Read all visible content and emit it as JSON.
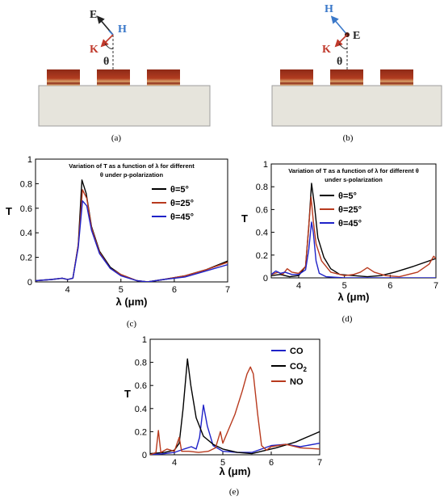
{
  "diagrams": {
    "a": {
      "caption": "(a)",
      "labels": {
        "e": "E",
        "h": "H",
        "k": "K",
        "theta": "θ"
      },
      "colors": {
        "e": "#222222",
        "h": "#3a78c9",
        "k": "#c0392b",
        "theta": "#222222"
      }
    },
    "b": {
      "caption": "(b)",
      "labels": {
        "e": "E",
        "h": "H",
        "k": "K",
        "theta": "θ"
      },
      "colors": {
        "e": "#222222",
        "h": "#3a78c9",
        "k": "#c0392b",
        "theta": "#222222"
      }
    }
  },
  "chart_data": [
    {
      "id": "c",
      "type": "line",
      "title_lines": [
        "Variation of T as a function of λ for different",
        "θ under p-polarization"
      ],
      "xlabel": "λ (μm)",
      "ylabel": "T",
      "caption": "(c)",
      "xlim": [
        3.4,
        7
      ],
      "ylim": [
        0,
        1
      ],
      "xticks": [
        4,
        5,
        6,
        7
      ],
      "yticks": [
        0,
        0.2,
        0.4,
        0.6,
        0.8,
        1
      ],
      "ytick_labels": [
        "0",
        "0.2",
        "0.4",
        "0.6",
        "0.8",
        "1"
      ],
      "legend_position": "right",
      "series": [
        {
          "name": "θ=5°",
          "color": "#000000",
          "points": [
            [
              3.4,
              0.01
            ],
            [
              3.7,
              0.02
            ],
            [
              3.9,
              0.03
            ],
            [
              4.0,
              0.02
            ],
            [
              4.1,
              0.03
            ],
            [
              4.2,
              0.3
            ],
            [
              4.27,
              0.83
            ],
            [
              4.35,
              0.72
            ],
            [
              4.45,
              0.45
            ],
            [
              4.6,
              0.25
            ],
            [
              4.8,
              0.12
            ],
            [
              5.0,
              0.06
            ],
            [
              5.3,
              0.01
            ],
            [
              5.5,
              0.0
            ],
            [
              5.8,
              0.02
            ],
            [
              6.2,
              0.05
            ],
            [
              6.6,
              0.1
            ],
            [
              7.0,
              0.17
            ]
          ]
        },
        {
          "name": "θ=25°",
          "color": "#b83a1e",
          "points": [
            [
              3.4,
              0.01
            ],
            [
              3.7,
              0.02
            ],
            [
              3.9,
              0.03
            ],
            [
              4.0,
              0.02
            ],
            [
              4.1,
              0.03
            ],
            [
              4.2,
              0.3
            ],
            [
              4.28,
              0.75
            ],
            [
              4.36,
              0.68
            ],
            [
              4.45,
              0.44
            ],
            [
              4.6,
              0.24
            ],
            [
              4.8,
              0.11
            ],
            [
              5.0,
              0.06
            ],
            [
              5.3,
              0.01
            ],
            [
              5.5,
              0.0
            ],
            [
              5.8,
              0.02
            ],
            [
              6.2,
              0.05
            ],
            [
              6.6,
              0.1
            ],
            [
              7.0,
              0.16
            ]
          ]
        },
        {
          "name": "θ=45°",
          "color": "#1f22c8",
          "points": [
            [
              3.4,
              0.01
            ],
            [
              3.7,
              0.02
            ],
            [
              3.9,
              0.03
            ],
            [
              4.0,
              0.02
            ],
            [
              4.1,
              0.03
            ],
            [
              4.2,
              0.28
            ],
            [
              4.28,
              0.66
            ],
            [
              4.36,
              0.62
            ],
            [
              4.45,
              0.42
            ],
            [
              4.6,
              0.23
            ],
            [
              4.8,
              0.11
            ],
            [
              5.0,
              0.05
            ],
            [
              5.3,
              0.01
            ],
            [
              5.5,
              0.0
            ],
            [
              5.8,
              0.02
            ],
            [
              6.2,
              0.04
            ],
            [
              6.6,
              0.09
            ],
            [
              7.0,
              0.14
            ]
          ]
        }
      ]
    },
    {
      "id": "d",
      "type": "line",
      "title_lines": [
        "Variation of T as a function of λ for different θ",
        "under s-polarization"
      ],
      "xlabel": "λ (μm)",
      "ylabel": "T",
      "caption": "(d)",
      "xlim": [
        3.4,
        7
      ],
      "ylim": [
        0,
        1
      ],
      "xticks": [
        4,
        5,
        6,
        7
      ],
      "yticks": [
        0,
        0.2,
        0.4,
        0.6,
        0.8,
        1
      ],
      "ytick_labels": [
        "0",
        "0.2",
        "0.4",
        "0.6",
        "0.8",
        "1"
      ],
      "legend_position": "right",
      "series": [
        {
          "name": "θ=5°",
          "color": "#000000",
          "points": [
            [
              3.4,
              0.02
            ],
            [
              3.6,
              0.03
            ],
            [
              3.8,
              0.01
            ],
            [
              4.0,
              0.02
            ],
            [
              4.15,
              0.1
            ],
            [
              4.22,
              0.45
            ],
            [
              4.28,
              0.83
            ],
            [
              4.34,
              0.65
            ],
            [
              4.42,
              0.35
            ],
            [
              4.55,
              0.18
            ],
            [
              4.7,
              0.08
            ],
            [
              4.9,
              0.03
            ],
            [
              5.2,
              0.02
            ],
            [
              5.5,
              0.01
            ],
            [
              5.8,
              0.02
            ],
            [
              6.1,
              0.05
            ],
            [
              6.5,
              0.1
            ],
            [
              7.0,
              0.17
            ]
          ]
        },
        {
          "name": "θ=25°",
          "color": "#b83a1e",
          "points": [
            [
              3.4,
              0.03
            ],
            [
              3.55,
              0.05
            ],
            [
              3.65,
              0.03
            ],
            [
              3.75,
              0.08
            ],
            [
              3.85,
              0.05
            ],
            [
              4.0,
              0.04
            ],
            [
              4.15,
              0.1
            ],
            [
              4.2,
              0.35
            ],
            [
              4.27,
              0.71
            ],
            [
              4.32,
              0.5
            ],
            [
              4.38,
              0.3
            ],
            [
              4.5,
              0.15
            ],
            [
              4.7,
              0.05
            ],
            [
              5.0,
              0.02
            ],
            [
              5.2,
              0.03
            ],
            [
              5.35,
              0.05
            ],
            [
              5.5,
              0.09
            ],
            [
              5.65,
              0.05
            ],
            [
              5.9,
              0.02
            ],
            [
              6.2,
              0.01
            ],
            [
              6.6,
              0.05
            ],
            [
              6.85,
              0.12
            ],
            [
              6.95,
              0.19
            ],
            [
              7.0,
              0.17
            ]
          ]
        },
        {
          "name": "θ=45°",
          "color": "#1f22c8",
          "points": [
            [
              3.4,
              0.03
            ],
            [
              3.5,
              0.06
            ],
            [
              3.6,
              0.04
            ],
            [
              3.7,
              0.05
            ],
            [
              3.85,
              0.03
            ],
            [
              4.0,
              0.03
            ],
            [
              4.15,
              0.07
            ],
            [
              4.22,
              0.25
            ],
            [
              4.28,
              0.49
            ],
            [
              4.32,
              0.4
            ],
            [
              4.38,
              0.15
            ],
            [
              4.45,
              0.04
            ],
            [
              4.6,
              0.01
            ],
            [
              5.0,
              0.0
            ],
            [
              7.0,
              0.0
            ]
          ]
        }
      ]
    },
    {
      "id": "e",
      "type": "line",
      "xlabel": "λ (μm)",
      "ylabel": "T",
      "caption": "(e)",
      "xlim": [
        3.5,
        7
      ],
      "ylim": [
        0,
        1
      ],
      "xticks": [
        4,
        5,
        6,
        7
      ],
      "yticks": [
        0,
        0.2,
        0.4,
        0.6,
        0.8,
        1
      ],
      "ytick_labels": [
        "0",
        "0.2",
        "0.4",
        "0.6",
        "0.8",
        "1"
      ],
      "legend_position": "top-right",
      "series": [
        {
          "name": "CO",
          "color": "#1f22c8",
          "points": [
            [
              3.5,
              0.0
            ],
            [
              3.8,
              0.01
            ],
            [
              4.0,
              0.02
            ],
            [
              4.2,
              0.05
            ],
            [
              4.35,
              0.07
            ],
            [
              4.45,
              0.05
            ],
            [
              4.52,
              0.15
            ],
            [
              4.6,
              0.43
            ],
            [
              4.68,
              0.25
            ],
            [
              4.8,
              0.08
            ],
            [
              5.0,
              0.03
            ],
            [
              5.3,
              0.02
            ],
            [
              5.6,
              0.02
            ],
            [
              5.8,
              0.05
            ],
            [
              6.0,
              0.08
            ],
            [
              6.3,
              0.09
            ],
            [
              6.6,
              0.07
            ],
            [
              7.0,
              0.1
            ]
          ]
        },
        {
          "name": "CO2",
          "color": "#000000",
          "points": [
            [
              3.5,
              0.01
            ],
            [
              3.8,
              0.02
            ],
            [
              4.0,
              0.04
            ],
            [
              4.1,
              0.1
            ],
            [
              4.18,
              0.4
            ],
            [
              4.27,
              0.83
            ],
            [
              4.34,
              0.6
            ],
            [
              4.45,
              0.32
            ],
            [
              4.6,
              0.16
            ],
            [
              4.8,
              0.09
            ],
            [
              5.0,
              0.05
            ],
            [
              5.3,
              0.02
            ],
            [
              5.6,
              0.01
            ],
            [
              5.8,
              0.03
            ],
            [
              6.1,
              0.06
            ],
            [
              6.5,
              0.11
            ],
            [
              7.0,
              0.2
            ]
          ]
        },
        {
          "name": "NO",
          "color": "#b83a1e",
          "points": [
            [
              3.5,
              0.0
            ],
            [
              3.62,
              0.02
            ],
            [
              3.67,
              0.21
            ],
            [
              3.72,
              0.02
            ],
            [
              3.85,
              0.05
            ],
            [
              4.0,
              0.03
            ],
            [
              4.1,
              0.15
            ],
            [
              4.15,
              0.03
            ],
            [
              4.3,
              0.03
            ],
            [
              4.5,
              0.02
            ],
            [
              4.7,
              0.03
            ],
            [
              4.85,
              0.06
            ],
            [
              4.95,
              0.2
            ],
            [
              5.0,
              0.1
            ],
            [
              5.1,
              0.2
            ],
            [
              5.25,
              0.35
            ],
            [
              5.4,
              0.55
            ],
            [
              5.5,
              0.7
            ],
            [
              5.57,
              0.76
            ],
            [
              5.63,
              0.7
            ],
            [
              5.72,
              0.35
            ],
            [
              5.8,
              0.08
            ],
            [
              5.9,
              0.04
            ],
            [
              6.0,
              0.07
            ],
            [
              6.3,
              0.09
            ],
            [
              6.6,
              0.06
            ],
            [
              7.0,
              0.05
            ]
          ]
        }
      ]
    }
  ]
}
